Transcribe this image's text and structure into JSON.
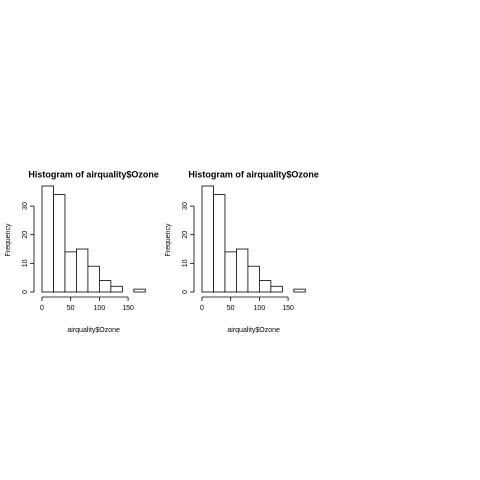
{
  "chart_data": [
    {
      "type": "histogram",
      "title": "Histogram of airquality$Ozone",
      "xlabel": "airquality$Ozone",
      "ylabel": "Frequency",
      "bins": [
        0,
        20,
        40,
        60,
        80,
        100,
        120,
        140,
        160,
        180
      ],
      "values": [
        37,
        34,
        14,
        15,
        9,
        4,
        2,
        0,
        1
      ],
      "xlim": [
        0,
        180
      ],
      "ylim": [
        0,
        37
      ],
      "xticks": [
        0,
        50,
        100,
        150
      ],
      "yticks": [
        0,
        10,
        20,
        30
      ]
    },
    {
      "type": "histogram",
      "title": "Histogram of airquality$Ozone",
      "xlabel": "airquality$Ozone",
      "ylabel": "Frequency",
      "bins": [
        0,
        20,
        40,
        60,
        80,
        100,
        120,
        140,
        160,
        180
      ],
      "values": [
        37,
        34,
        14,
        15,
        9,
        4,
        2,
        0,
        1
      ],
      "xlim": [
        0,
        180
      ],
      "ylim": [
        0,
        37
      ],
      "xticks": [
        0,
        50,
        100,
        150
      ],
      "yticks": [
        0,
        10,
        20,
        30
      ]
    }
  ]
}
